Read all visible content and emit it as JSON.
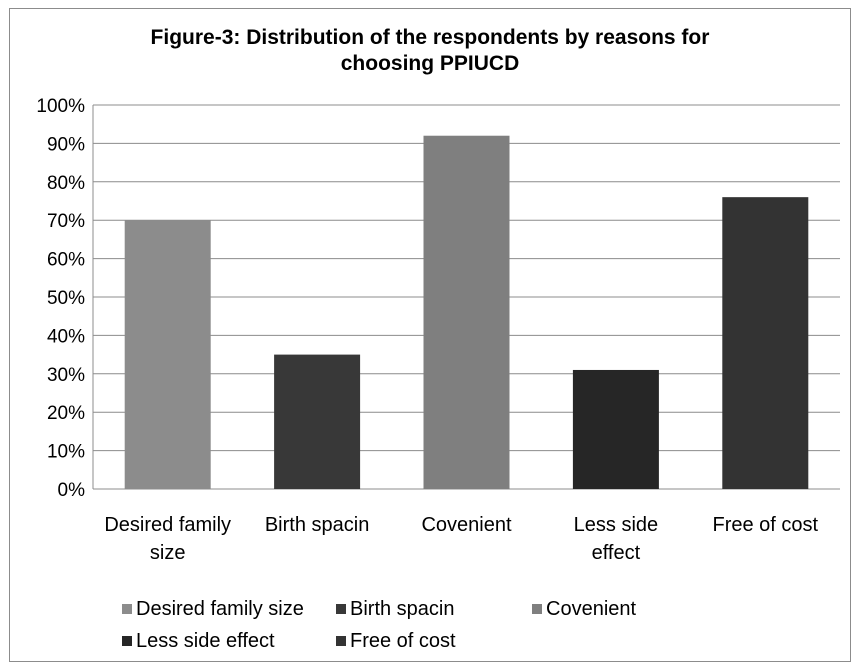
{
  "chart_data": {
    "type": "bar",
    "title": "Figure-3: Distribution of the respondents by reasons for choosing PPIUCD",
    "title_lines": [
      "Figure-3: Distribution of the respondents by reasons for",
      "choosing PPIUCD"
    ],
    "xlabel": "",
    "ylabel": "",
    "y_ticks": [
      "0%",
      "10%",
      "20%",
      "30%",
      "40%",
      "50%",
      "60%",
      "70%",
      "80%",
      "90%",
      "100%"
    ],
    "ylim": [
      0,
      100
    ],
    "grid": true,
    "legend_position": "bottom",
    "categories": [
      "Desired family size",
      "Birth spacin",
      "Covenient",
      "Less side effect",
      "Free of cost"
    ],
    "category_label_lines": [
      [
        "Desired family",
        "size"
      ],
      [
        "Birth spacin"
      ],
      [
        "Covenient"
      ],
      [
        "Less side",
        "effect"
      ],
      [
        "Free of cost"
      ]
    ],
    "series": [
      {
        "name": "Desired family size",
        "values": [
          70,
          null,
          null,
          null,
          null
        ],
        "color": "#8c8c8c"
      },
      {
        "name": "Birth spacin",
        "values": [
          null,
          35,
          null,
          null,
          null
        ],
        "color": "#383838"
      },
      {
        "name": "Covenient",
        "values": [
          null,
          null,
          92,
          null,
          null
        ],
        "color": "#7f7f7f"
      },
      {
        "name": "Less side effect",
        "values": [
          null,
          null,
          null,
          31,
          null
        ],
        "color": "#262626"
      },
      {
        "name": "Free of cost",
        "values": [
          null,
          null,
          null,
          null,
          76
        ],
        "color": "#333333"
      }
    ]
  }
}
